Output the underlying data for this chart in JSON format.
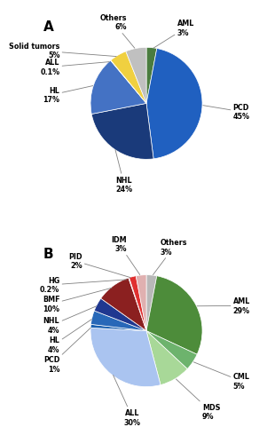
{
  "A": {
    "labels": [
      "AML",
      "PCD",
      "NHL",
      "HL",
      "ALL",
      "Solid tumors",
      "Others"
    ],
    "values": [
      3,
      45,
      24,
      17,
      0.1,
      5,
      6
    ],
    "colors": [
      "#4a7c3f",
      "#2060c0",
      "#1a3a7a",
      "#4472c4",
      "#2060c0",
      "#f0d040",
      "#c0c0c0"
    ],
    "label_texts": [
      "AML\n3%",
      "PCD\n45%",
      "NHL\n24%",
      "HL\n17%",
      "ALL\n0.1%",
      "Solid tumors\n5%",
      "Others\n6%"
    ],
    "title": "A",
    "label_positions": {
      "AML": [
        0.55,
        1.35,
        "left"
      ],
      "PCD": [
        1.55,
        -0.15,
        "left"
      ],
      "NHL": [
        -0.55,
        -1.45,
        "left"
      ],
      "HL": [
        -1.55,
        0.15,
        "right"
      ],
      "ALL": [
        -1.55,
        0.65,
        "right"
      ],
      "Solid tumors": [
        -1.55,
        0.95,
        "right"
      ],
      "Others": [
        -0.35,
        1.45,
        "right"
      ]
    }
  },
  "B": {
    "labels": [
      "Others",
      "AML",
      "CML",
      "MDS",
      "ALL",
      "PCD",
      "HL",
      "NHL",
      "BMF",
      "HG",
      "PID",
      "IDM"
    ],
    "values": [
      3,
      29,
      5,
      9,
      30,
      1,
      4,
      4,
      10,
      0.2,
      2,
      3
    ],
    "colors": [
      "#b8b8b8",
      "#4d8c3a",
      "#6db36d",
      "#a8d898",
      "#aac4f0",
      "#1a60b0",
      "#2868b8",
      "#203890",
      "#8b2020",
      "#c07090",
      "#e03030",
      "#e0b0b0"
    ],
    "label_texts": [
      "Others\n3%",
      "AML\n29%",
      "CML\n5%",
      "MDS\n9%",
      "ALL\n30%",
      "PCD\n1%",
      "HL\n4%",
      "NHL\n4%",
      "BMF\n10%",
      "HG\n0.2%",
      "PID\n2%",
      "IDM\n3%"
    ],
    "title": "B",
    "label_positions": {
      "Others": [
        0.25,
        1.5,
        "left"
      ],
      "AML": [
        1.55,
        0.45,
        "left"
      ],
      "CML": [
        1.55,
        -0.9,
        "left"
      ],
      "MDS": [
        1.0,
        -1.45,
        "left"
      ],
      "ALL": [
        -0.25,
        -1.55,
        "center"
      ],
      "PCD": [
        -1.55,
        -0.6,
        "right"
      ],
      "HL": [
        -1.55,
        -0.25,
        "right"
      ],
      "NHL": [
        -1.55,
        0.1,
        "right"
      ],
      "BMF": [
        -1.55,
        0.48,
        "right"
      ],
      "HG": [
        -1.55,
        0.82,
        "right"
      ],
      "PID": [
        -1.15,
        1.25,
        "right"
      ],
      "IDM": [
        -0.35,
        1.55,
        "right"
      ]
    }
  }
}
